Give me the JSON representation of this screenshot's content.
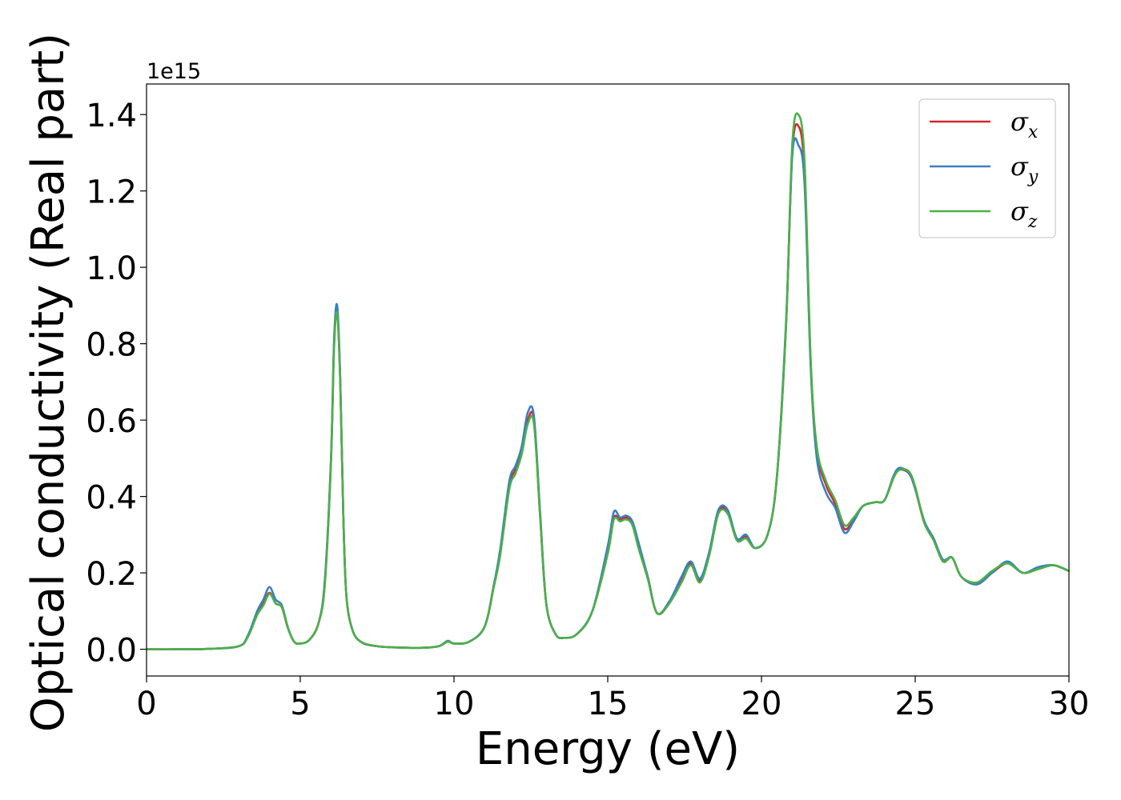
{
  "chart_data": {
    "type": "line",
    "xlabel": "Energy (eV)",
    "ylabel": "Optical conductivity (Real part)",
    "y_offset_label": "1e15",
    "xlim": [
      0,
      30
    ],
    "ylim": [
      -0.07,
      1.48
    ],
    "x_ticks": [
      0,
      5,
      10,
      15,
      20,
      25,
      30
    ],
    "x_tick_labels": [
      "0",
      "5",
      "10",
      "15",
      "20",
      "25",
      "30"
    ],
    "y_ticks": [
      0.0,
      0.2,
      0.4,
      0.6,
      0.8,
      1.0,
      1.2,
      1.4
    ],
    "y_tick_labels": [
      "0.0",
      "0.2",
      "0.4",
      "0.6",
      "0.8",
      "1.0",
      "1.2",
      "1.4"
    ],
    "grid": false,
    "legend_position": "top-right",
    "x": [
      0,
      1,
      2,
      3,
      3.3,
      3.6,
      3.8,
      4.0,
      4.2,
      4.4,
      4.6,
      4.8,
      5.0,
      5.3,
      5.6,
      5.8,
      6.0,
      6.1,
      6.2,
      6.3,
      6.4,
      6.5,
      6.7,
      7.0,
      7.5,
      8.0,
      9.0,
      9.5,
      9.8,
      10.0,
      10.5,
      11.0,
      11.3,
      11.5,
      11.8,
      12.0,
      12.2,
      12.4,
      12.6,
      12.8,
      13.0,
      13.3,
      13.6,
      14.0,
      14.5,
      15.0,
      15.2,
      15.4,
      15.6,
      15.8,
      16.0,
      16.3,
      16.6,
      17.0,
      17.4,
      17.7,
      18.0,
      18.3,
      18.6,
      18.9,
      19.2,
      19.5,
      19.8,
      20.2,
      20.5,
      20.8,
      21.0,
      21.2,
      21.4,
      21.6,
      21.8,
      22.1,
      22.4,
      22.7,
      23.0,
      23.3,
      23.7,
      24.0,
      24.3,
      24.5,
      24.8,
      25.0,
      25.3,
      25.6,
      25.9,
      26.2,
      26.5,
      27.0,
      27.5,
      28.0,
      28.5,
      29.0,
      29.5,
      30.0
    ],
    "series": [
      {
        "name": "σx",
        "legend_base": "σ",
        "legend_sub": "x",
        "color": "#d62728",
        "values": [
          0,
          0,
          0.001,
          0.008,
          0.035,
          0.095,
          0.12,
          0.148,
          0.12,
          0.11,
          0.055,
          0.02,
          0.015,
          0.025,
          0.07,
          0.18,
          0.5,
          0.8,
          0.89,
          0.7,
          0.35,
          0.14,
          0.05,
          0.018,
          0.008,
          0.005,
          0.004,
          0.008,
          0.02,
          0.015,
          0.02,
          0.06,
          0.17,
          0.25,
          0.43,
          0.47,
          0.52,
          0.6,
          0.6,
          0.35,
          0.12,
          0.04,
          0.03,
          0.04,
          0.1,
          0.26,
          0.345,
          0.34,
          0.345,
          0.33,
          0.27,
          0.19,
          0.095,
          0.12,
          0.18,
          0.225,
          0.18,
          0.25,
          0.36,
          0.36,
          0.29,
          0.295,
          0.265,
          0.3,
          0.45,
          0.85,
          1.3,
          1.37,
          1.25,
          0.75,
          0.52,
          0.43,
          0.38,
          0.315,
          0.34,
          0.375,
          0.385,
          0.39,
          0.45,
          0.47,
          0.46,
          0.42,
          0.33,
          0.29,
          0.23,
          0.24,
          0.19,
          0.17,
          0.2,
          0.225,
          0.2,
          0.21,
          0.22,
          0.205
        ]
      },
      {
        "name": "σy",
        "legend_base": "σ",
        "legend_sub": "y",
        "color": "#3b7fc4",
        "values": [
          0,
          0,
          0.001,
          0.008,
          0.037,
          0.1,
          0.13,
          0.163,
          0.13,
          0.115,
          0.057,
          0.02,
          0.015,
          0.025,
          0.07,
          0.18,
          0.5,
          0.81,
          0.9,
          0.71,
          0.35,
          0.14,
          0.05,
          0.018,
          0.008,
          0.005,
          0.004,
          0.008,
          0.022,
          0.015,
          0.02,
          0.06,
          0.17,
          0.26,
          0.44,
          0.48,
          0.53,
          0.62,
          0.61,
          0.36,
          0.12,
          0.04,
          0.03,
          0.04,
          0.1,
          0.27,
          0.36,
          0.345,
          0.35,
          0.335,
          0.28,
          0.19,
          0.095,
          0.125,
          0.19,
          0.23,
          0.185,
          0.255,
          0.365,
          0.365,
          0.29,
          0.3,
          0.265,
          0.3,
          0.45,
          0.86,
          1.29,
          1.32,
          1.22,
          0.74,
          0.5,
          0.41,
          0.37,
          0.305,
          0.335,
          0.375,
          0.385,
          0.39,
          0.455,
          0.475,
          0.46,
          0.42,
          0.335,
          0.29,
          0.235,
          0.24,
          0.19,
          0.17,
          0.2,
          0.23,
          0.2,
          0.215,
          0.22,
          0.205
        ]
      },
      {
        "name": "σz",
        "legend_base": "σ",
        "legend_sub": "z",
        "color": "#4daf4a",
        "values": [
          0,
          0,
          0.001,
          0.008,
          0.033,
          0.09,
          0.115,
          0.145,
          0.12,
          0.11,
          0.055,
          0.02,
          0.015,
          0.025,
          0.07,
          0.17,
          0.49,
          0.79,
          0.88,
          0.7,
          0.35,
          0.14,
          0.05,
          0.018,
          0.008,
          0.005,
          0.004,
          0.008,
          0.02,
          0.015,
          0.02,
          0.06,
          0.165,
          0.245,
          0.42,
          0.46,
          0.51,
          0.59,
          0.59,
          0.35,
          0.12,
          0.04,
          0.03,
          0.04,
          0.1,
          0.25,
          0.34,
          0.335,
          0.34,
          0.325,
          0.265,
          0.185,
          0.095,
          0.12,
          0.175,
          0.22,
          0.175,
          0.245,
          0.355,
          0.355,
          0.285,
          0.29,
          0.265,
          0.3,
          0.45,
          0.85,
          1.32,
          1.4,
          1.28,
          0.76,
          0.53,
          0.44,
          0.39,
          0.325,
          0.345,
          0.375,
          0.385,
          0.39,
          0.45,
          0.47,
          0.465,
          0.425,
          0.33,
          0.285,
          0.23,
          0.24,
          0.19,
          0.175,
          0.205,
          0.225,
          0.2,
          0.21,
          0.22,
          0.205
        ]
      }
    ]
  }
}
